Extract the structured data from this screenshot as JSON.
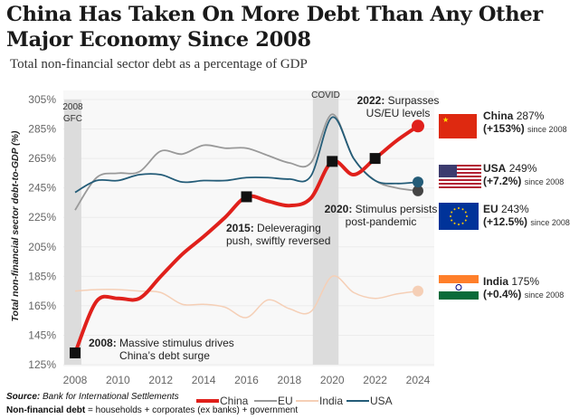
{
  "title": "China Has Taken On More Debt Than Any Other Major Economy Since 2008",
  "subtitle": "Total non-financial sector debt as a percentage of GDP",
  "chart_data": {
    "type": "line",
    "ylabel": "Total non-financial sector debt-to-GDP (%)",
    "xlim": [
      2008,
      2024
    ],
    "ylim": [
      125,
      305
    ],
    "xticks": [
      "2008",
      "2010",
      "2012",
      "2014",
      "2016",
      "2018",
      "2020",
      "2022",
      "2024"
    ],
    "yticks": [
      "125%",
      "145%",
      "165%",
      "185%",
      "205%",
      "225%",
      "245%",
      "265%",
      "285%",
      "305%"
    ],
    "grid": true,
    "legend": "bottom",
    "x": [
      2008,
      2009,
      2010,
      2011,
      2012,
      2013,
      2014,
      2015,
      2016,
      2017,
      2018,
      2019,
      2020,
      2021,
      2022,
      2023,
      2024
    ],
    "series": [
      {
        "name": "China",
        "color": "#e0201b",
        "values": [
          133,
          168,
          170,
          170,
          185,
          200,
          212,
          225,
          239,
          236,
          233,
          238,
          263,
          254,
          265,
          277,
          287
        ]
      },
      {
        "name": "EU",
        "color": "#999999",
        "values": [
          230,
          252,
          255,
          256,
          270,
          268,
          274,
          272,
          272,
          267,
          262,
          262,
          295,
          265,
          250,
          245,
          243
        ]
      },
      {
        "name": "India",
        "color": "#f5cfb6",
        "values": [
          175,
          176,
          176,
          175,
          174,
          166,
          166,
          164,
          157,
          169,
          163,
          161,
          185,
          174,
          170,
          173,
          175
        ]
      },
      {
        "name": "USA",
        "color": "#245c78",
        "values": [
          242,
          250,
          250,
          254,
          254,
          249,
          250,
          250,
          252,
          252,
          251,
          253,
          293,
          265,
          250,
          248,
          249
        ]
      }
    ],
    "shaded_periods": [
      {
        "label": "2008 GFC",
        "from": 2008,
        "to": 2008.8
      },
      {
        "label": "COVID",
        "from": 2019.6,
        "to": 2020.8
      }
    ],
    "annotations": [
      {
        "year": "2008:",
        "text": "Massive stimulus drives China’s debt surge",
        "x": 2008,
        "y": 133
      },
      {
        "year": "2015:",
        "text": "Deleveraging push, swiftly reversed",
        "x": 2016,
        "y": 239
      },
      {
        "year": "2020:",
        "text": "Stimulus persists post-pandemic",
        "x": 2020,
        "y": 263
      },
      {
        "year": "2022:",
        "text": "Surpasses US/EU levels",
        "x": 2022,
        "y": 265
      }
    ],
    "end_labels": [
      {
        "country": "China",
        "value": "287%",
        "change": "(+153%)",
        "since": "since 2008"
      },
      {
        "country": "USA",
        "value": "249%",
        "change": "(+7.2%)",
        "since": "since 2008"
      },
      {
        "country": "EU",
        "value": "243%",
        "change": "(+12.5%)",
        "since": "since 2008"
      },
      {
        "country": "India",
        "value": "175%",
        "change": "(+0.4%)",
        "since": "since 2008"
      }
    ]
  },
  "footer": {
    "source_label": "Source:",
    "source": "Bank for International Settlements",
    "def_label": "Non-financial debt",
    "def": "= households + corporates (ex banks) + government"
  }
}
